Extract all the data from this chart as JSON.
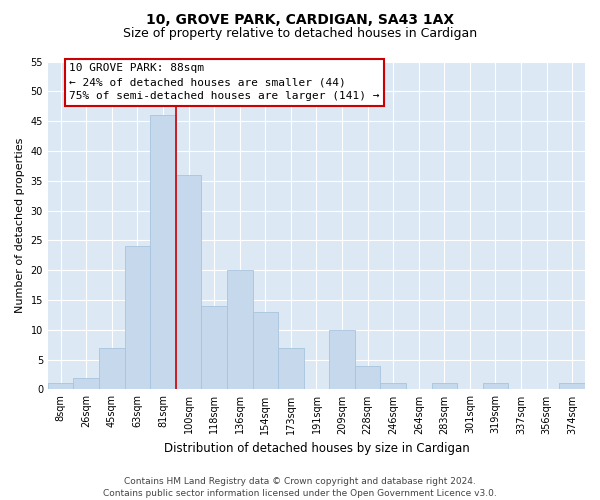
{
  "title": "10, GROVE PARK, CARDIGAN, SA43 1AX",
  "subtitle": "Size of property relative to detached houses in Cardigan",
  "xlabel": "Distribution of detached houses by size in Cardigan",
  "ylabel": "Number of detached properties",
  "bar_labels": [
    "8sqm",
    "26sqm",
    "45sqm",
    "63sqm",
    "81sqm",
    "100sqm",
    "118sqm",
    "136sqm",
    "154sqm",
    "173sqm",
    "191sqm",
    "209sqm",
    "228sqm",
    "246sqm",
    "264sqm",
    "283sqm",
    "301sqm",
    "319sqm",
    "337sqm",
    "356sqm",
    "374sqm"
  ],
  "bar_values": [
    1,
    2,
    7,
    24,
    46,
    36,
    14,
    20,
    13,
    7,
    0,
    10,
    4,
    1,
    0,
    1,
    0,
    1,
    0,
    0,
    1
  ],
  "bar_color": "#c6d9ec",
  "bar_edge_color": "#a8c4de",
  "vline_x": 4.5,
  "vline_color": "#cc0000",
  "ylim": [
    0,
    55
  ],
  "yticks": [
    0,
    5,
    10,
    15,
    20,
    25,
    30,
    35,
    40,
    45,
    50,
    55
  ],
  "annotation_title": "10 GROVE PARK: 88sqm",
  "annotation_line1": "← 24% of detached houses are smaller (44)",
  "annotation_line2": "75% of semi-detached houses are larger (141) →",
  "box_facecolor": "#ffffff",
  "box_edgecolor": "#cc0000",
  "footer_line1": "Contains HM Land Registry data © Crown copyright and database right 2024.",
  "footer_line2": "Contains public sector information licensed under the Open Government Licence v3.0.",
  "fig_bg_color": "#ffffff",
  "plot_bg_color": "#dce9f5",
  "grid_color": "#ffffff",
  "title_fontsize": 10,
  "subtitle_fontsize": 9,
  "ylabel_fontsize": 8,
  "xlabel_fontsize": 8.5,
  "tick_fontsize": 7,
  "annotation_fontsize": 8,
  "footer_fontsize": 6.5
}
